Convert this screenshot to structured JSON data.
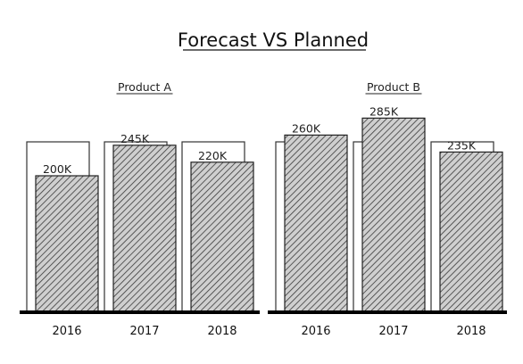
{
  "chart_data": {
    "type": "bar",
    "title": "Forecast VS Planned",
    "categories": [
      "2016",
      "2017",
      "2018"
    ],
    "panels": [
      {
        "title": "Product A",
        "planned": [
          250,
          250,
          250
        ],
        "forecast": [
          200,
          245,
          220
        ],
        "labels": [
          "200K",
          "245K",
          "220K"
        ]
      },
      {
        "title": "Product B",
        "planned": [
          250,
          250,
          250
        ],
        "forecast": [
          260,
          285,
          235
        ],
        "labels": [
          "260K",
          "285K",
          "235K"
        ]
      }
    ],
    "ylim": [
      0,
      300
    ],
    "grid": false,
    "legend": "none",
    "colors": {
      "planned_outline": "#333333",
      "forecast_fill": "#cfcfcf",
      "hatch": "#3a3a3a",
      "baseline": "#000000"
    }
  }
}
